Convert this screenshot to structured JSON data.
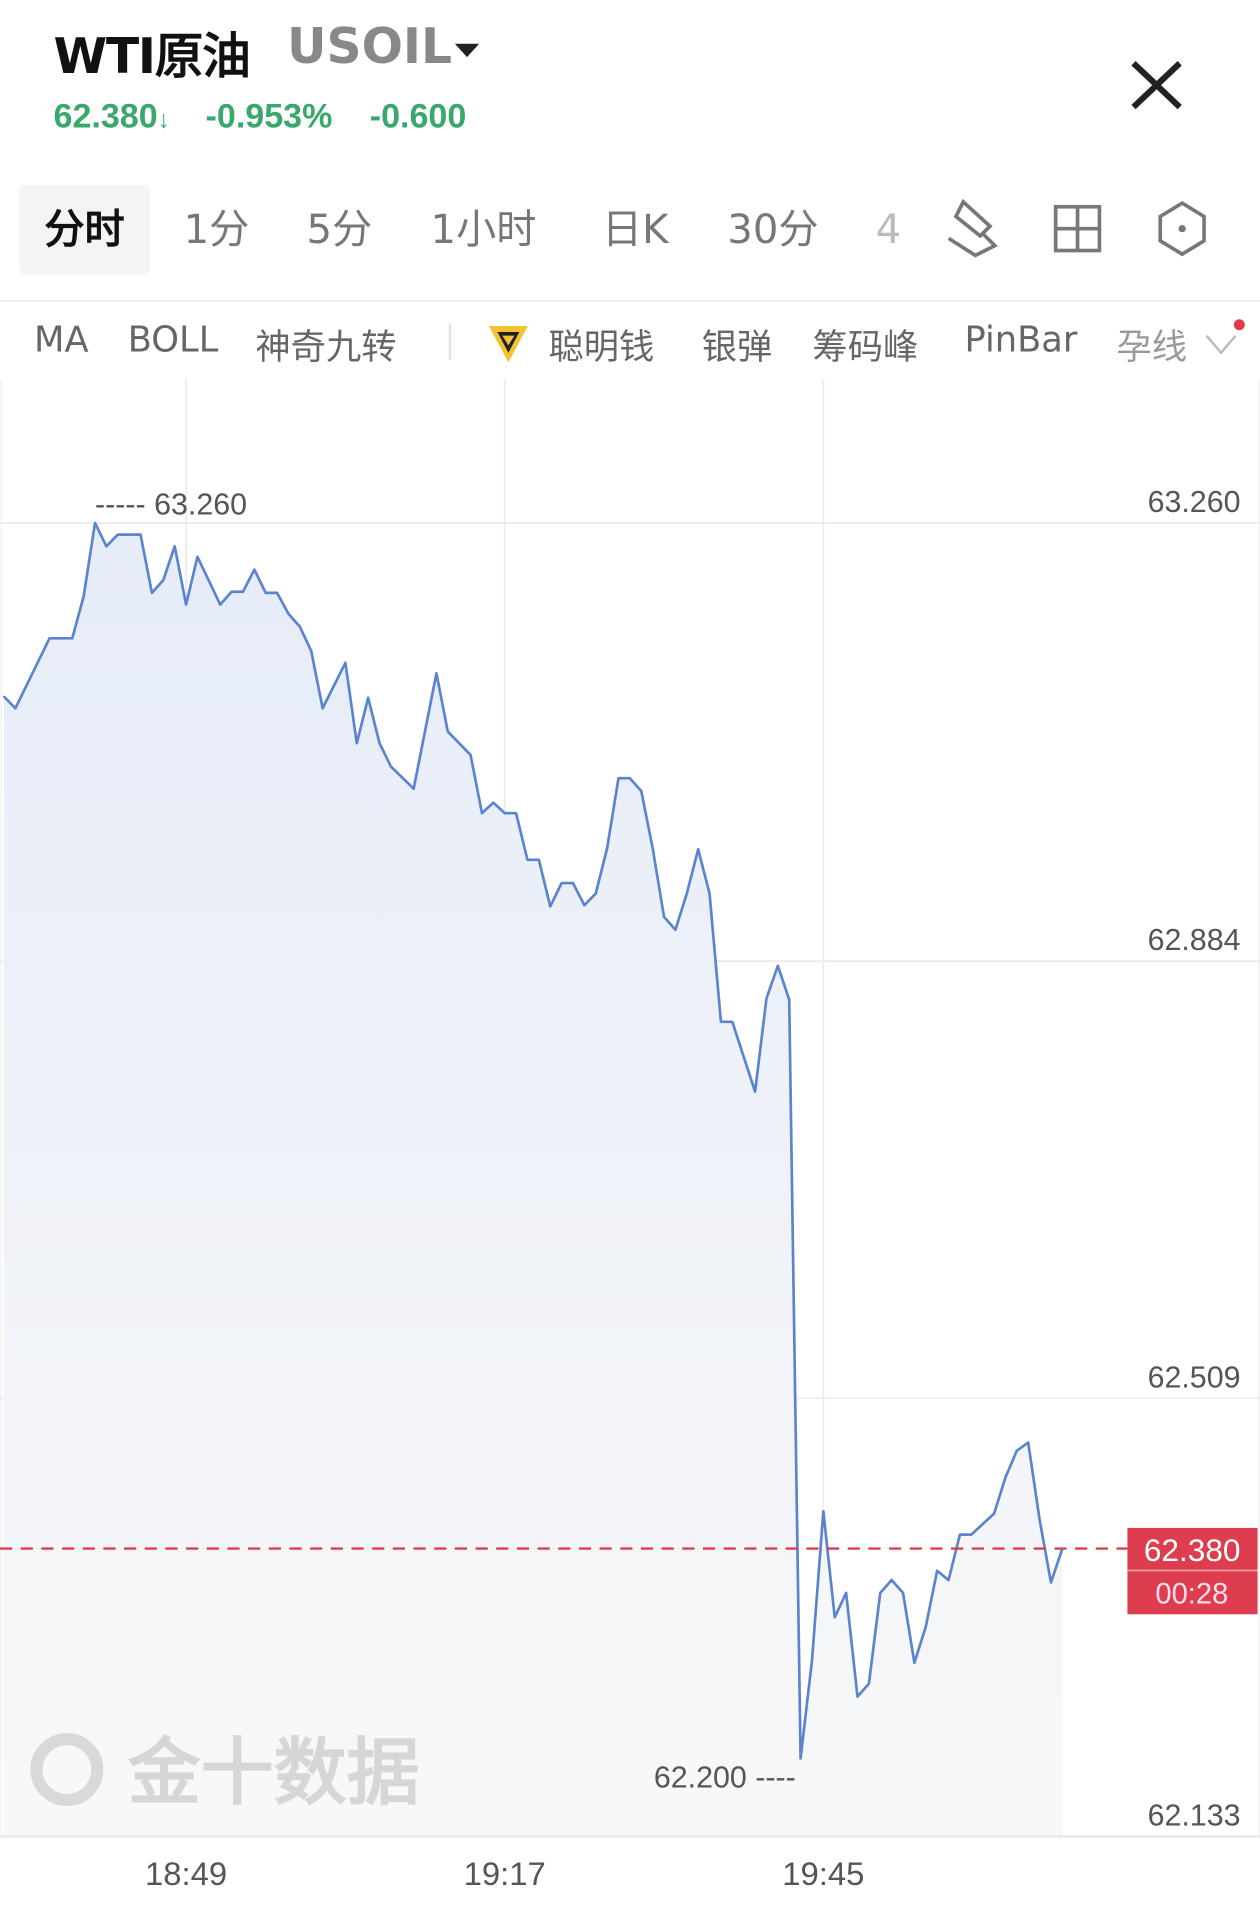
{
  "header": {
    "title": "WTI原油",
    "symbol": "USOIL",
    "price": "62.380",
    "price_arrow": "↓",
    "change_percent": "-0.953%",
    "change": "-0.600",
    "quote_color": "#3aa76d"
  },
  "tabs": [
    {
      "label": "分时",
      "selected": true
    },
    {
      "label": "1分"
    },
    {
      "label": "5分"
    },
    {
      "label": "1小时"
    },
    {
      "label": "日K"
    },
    {
      "label": "30分"
    },
    {
      "label": "4"
    }
  ],
  "toolbar_icons": [
    "draw-tool-icon",
    "layout-grid-icon",
    "settings-hexagon-icon"
  ],
  "indicators": [
    "MA",
    "BOLL",
    "神奇九转",
    "聪明钱",
    "银弹",
    "筹码峰",
    "PinBar",
    "孕线"
  ],
  "chart_data": {
    "type": "area",
    "line_color": "#5b84cf",
    "y_ticks": [
      "63.260",
      "62.884",
      "62.509",
      "62.133"
    ],
    "ylim": [
      62.133,
      63.26
    ],
    "x_ticks": [
      "18:49",
      "19:17",
      "19:45"
    ],
    "high_label": "63.260",
    "low_label": "62.200",
    "current": {
      "price": "62.380",
      "countdown": "00:28",
      "color": "#dd3d4f"
    },
    "watermark": "金十数据",
    "points": [
      [
        "18:33",
        63.111
      ],
      [
        "18:34",
        63.101
      ],
      [
        "18:37",
        63.161
      ],
      [
        "18:39",
        63.161
      ],
      [
        "18:40",
        63.197
      ],
      [
        "18:41",
        63.26
      ],
      [
        "18:42",
        63.24
      ],
      [
        "18:43",
        63.25
      ],
      [
        "18:45",
        63.25
      ],
      [
        "18:46",
        63.2
      ],
      [
        "18:47",
        63.211
      ],
      [
        "18:48",
        63.24
      ],
      [
        "18:49",
        63.19
      ],
      [
        "18:50",
        63.231
      ],
      [
        "18:52",
        63.19
      ],
      [
        "18:53",
        63.201
      ],
      [
        "18:54",
        63.201
      ],
      [
        "18:55",
        63.22
      ],
      [
        "18:56",
        63.2
      ],
      [
        "18:57",
        63.2
      ],
      [
        "18:58",
        63.182
      ],
      [
        "18:59",
        63.171
      ],
      [
        "19:00",
        63.15
      ],
      [
        "19:01",
        63.101
      ],
      [
        "19:03",
        63.14
      ],
      [
        "19:04",
        63.071
      ],
      [
        "19:05",
        63.11
      ],
      [
        "19:06",
        63.071
      ],
      [
        "19:07",
        63.051
      ],
      [
        "19:09",
        63.032
      ],
      [
        "19:11",
        63.131
      ],
      [
        "19:12",
        63.081
      ],
      [
        "19:14",
        63.061
      ],
      [
        "19:15",
        63.011
      ],
      [
        "19:16",
        63.02
      ],
      [
        "19:17",
        63.011
      ],
      [
        "19:18",
        63.011
      ],
      [
        "19:19",
        62.971
      ],
      [
        "19:20",
        62.971
      ],
      [
        "19:21",
        62.931
      ],
      [
        "19:22",
        62.951
      ],
      [
        "19:23",
        62.951
      ],
      [
        "19:24",
        62.932
      ],
      [
        "19:25",
        62.942
      ],
      [
        "19:26",
        62.981
      ],
      [
        "19:27",
        63.041
      ],
      [
        "19:28",
        63.041
      ],
      [
        "19:29",
        63.03
      ],
      [
        "19:30",
        62.981
      ],
      [
        "19:31",
        62.922
      ],
      [
        "19:32",
        62.911
      ],
      [
        "19:33",
        62.942
      ],
      [
        "19:34",
        62.98
      ],
      [
        "19:35",
        62.942
      ],
      [
        "19:36",
        62.832
      ],
      [
        "19:37",
        62.832
      ],
      [
        "19:39",
        62.772
      ],
      [
        "19:40",
        62.852
      ],
      [
        "19:41",
        62.88
      ],
      [
        "19:42",
        62.851
      ],
      [
        "19:43",
        62.2
      ],
      [
        "19:44",
        62.284
      ],
      [
        "19:45",
        62.412
      ],
      [
        "19:46",
        62.321
      ],
      [
        "19:47",
        62.342
      ],
      [
        "19:48",
        62.253
      ],
      [
        "19:49",
        62.264
      ],
      [
        "19:50",
        62.342
      ],
      [
        "19:51",
        62.353
      ],
      [
        "19:52",
        62.342
      ],
      [
        "19:53",
        62.282
      ],
      [
        "19:54",
        62.313
      ],
      [
        "19:55",
        62.361
      ],
      [
        "19:56",
        62.353
      ],
      [
        "19:57",
        62.392
      ],
      [
        "19:58",
        62.392
      ],
      [
        "20:00",
        62.41
      ],
      [
        "20:01",
        62.441
      ],
      [
        "20:02",
        62.464
      ],
      [
        "20:03",
        62.471
      ],
      [
        "20:04",
        62.405
      ],
      [
        "20:05",
        62.351
      ],
      [
        "20:06",
        62.38
      ]
    ]
  }
}
